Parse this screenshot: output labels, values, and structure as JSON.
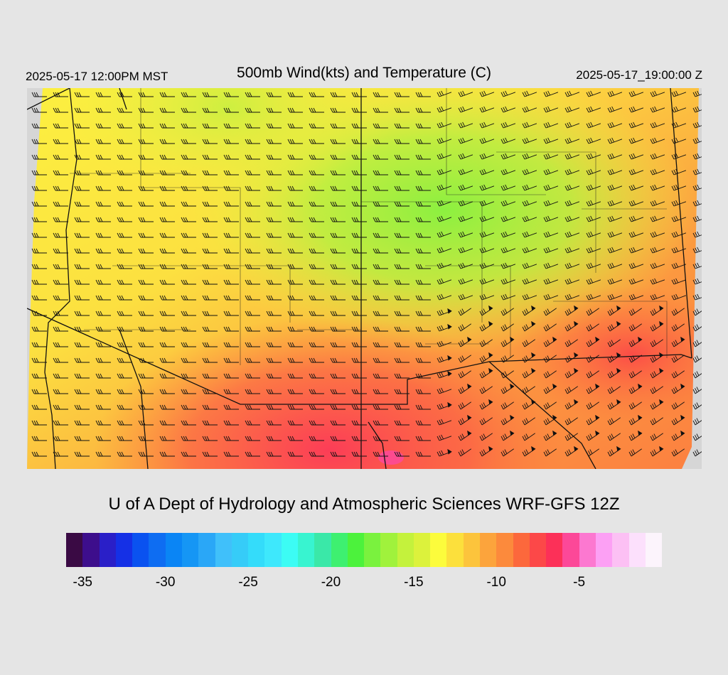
{
  "header": {
    "local_time": "2025-05-17 12:00PM MST",
    "title": "500mb Wind(kts) and Temperature (C)",
    "utc_time": "2025-05-17_19:00:00 Z"
  },
  "credit": "U of A Dept of Hydrology and Atmospheric Sciences WRF-GFS 12Z",
  "colorbar": {
    "min": -36,
    "max": -1,
    "step": 1,
    "colors": [
      "#3a0a44",
      "#3d0e8c",
      "#2a1fc8",
      "#1530e6",
      "#0a52f0",
      "#0e6df2",
      "#0a85f5",
      "#1596f5",
      "#2aa7f7",
      "#40c0fa",
      "#36ccf8",
      "#34dcfa",
      "#3ee8fc",
      "#3cfcf4",
      "#38f4d0",
      "#3ae8a8",
      "#3ef070",
      "#4cf23c",
      "#7af23e",
      "#a0f23c",
      "#c4f23c",
      "#dcf23c",
      "#fcfc3c",
      "#fce03c",
      "#fcc43c",
      "#fca43c",
      "#fc8a3c",
      "#fc683c",
      "#fc4848",
      "#fc3058",
      "#fc4898",
      "#fc78d0",
      "#fca0f4",
      "#fcc0f4",
      "#fce0fc",
      "#fcf4fc"
    ],
    "tick_labels": [
      {
        "label": "-35",
        "value": -35
      },
      {
        "label": "-30",
        "value": -30
      },
      {
        "label": "-25",
        "value": -25
      },
      {
        "label": "-20",
        "value": -20
      },
      {
        "label": "-15",
        "value": -15
      },
      {
        "label": "-10",
        "value": -10
      },
      {
        "label": "-5",
        "value": -5
      }
    ]
  },
  "map": {
    "field": "500mb temperature (C) with wind barbs (kts)",
    "temperature_range_shown": [
      -17,
      -6
    ]
  }
}
